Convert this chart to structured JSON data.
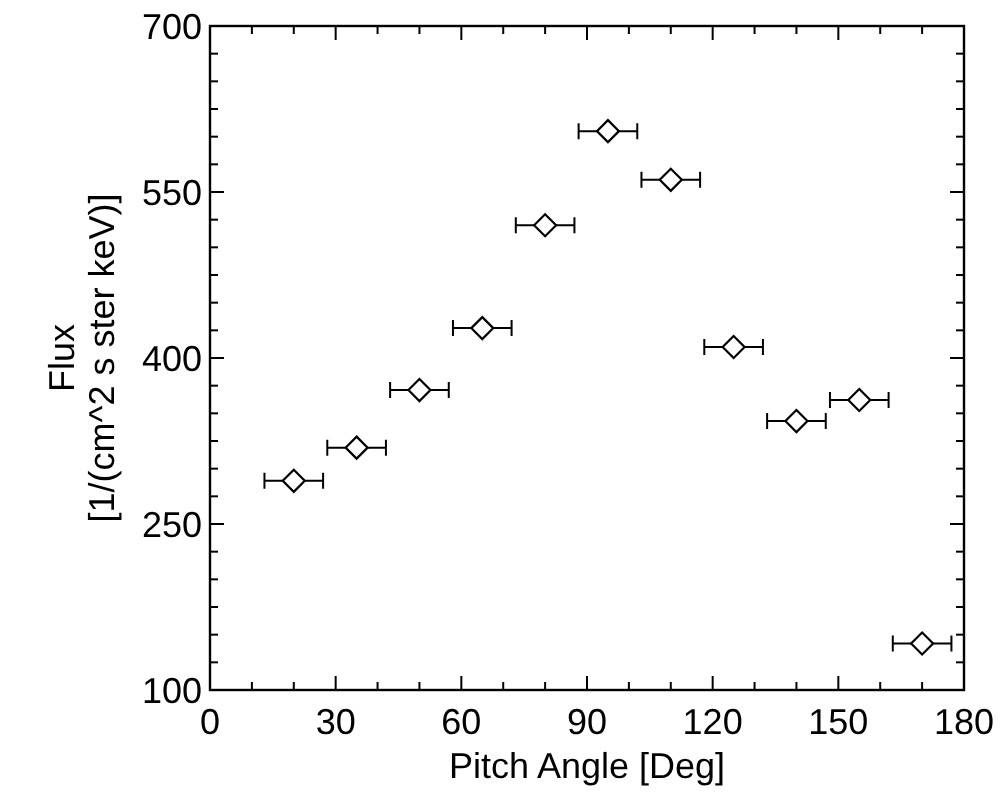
{
  "chart_data": {
    "type": "scatter",
    "xlabel": "Pitch Angle [Deg]",
    "ylabel": "Flux\n[1/(cm^2 s ster keV)]",
    "x": [
      20,
      35,
      50,
      65,
      80,
      95,
      110,
      125,
      140,
      155,
      170
    ],
    "values": [
      289,
      319,
      371,
      427,
      520,
      605,
      561,
      410,
      343,
      362,
      142
    ],
    "xerrors": [
      7,
      7,
      7,
      7,
      7,
      7,
      7,
      7,
      7,
      7,
      7
    ],
    "color": "#000000",
    "marker": "diamond",
    "grid": false,
    "xlim": [
      0,
      180
    ],
    "ylim": [
      100,
      700
    ],
    "xticks": [
      0,
      {
        "value": 10,
        "label": null
      },
      {
        "value": 20,
        "label": null
      },
      30,
      {
        "value": 40,
        "label": null
      },
      {
        "value": 50,
        "label": null
      },
      60,
      {
        "value": 70,
        "label": null
      },
      {
        "value": 80,
        "label": null
      },
      90,
      {
        "value": 100,
        "label": null
      },
      {
        "value": 110,
        "label": null
      },
      120,
      {
        "value": 130,
        "label": null
      },
      {
        "value": 140,
        "label": null
      },
      150,
      {
        "value": 160,
        "label": null
      },
      {
        "value": 170,
        "label": null
      },
      180
    ],
    "yticks": [
      100,
      {
        "value": 125,
        "label": null
      },
      {
        "value": 150,
        "label": null
      },
      {
        "value": 175,
        "label": null
      },
      {
        "value": 200,
        "label": null
      },
      {
        "value": 225,
        "label": null
      },
      250,
      {
        "value": 275,
        "label": null
      },
      {
        "value": 300,
        "label": null
      },
      {
        "value": 325,
        "label": null
      },
      {
        "value": 350,
        "label": null
      },
      {
        "value": 375,
        "label": null
      },
      400,
      {
        "value": 425,
        "label": null
      },
      {
        "value": 450,
        "label": null
      },
      {
        "value": 475,
        "label": null
      },
      {
        "value": 500,
        "label": null
      },
      {
        "value": 525,
        "label": null
      },
      550,
      {
        "value": 575,
        "label": null
      },
      {
        "value": 600,
        "label": null
      },
      {
        "value": 625,
        "label": null
      },
      {
        "value": 650,
        "label": null
      },
      {
        "value": 675,
        "label": null
      },
      700
    ]
  }
}
